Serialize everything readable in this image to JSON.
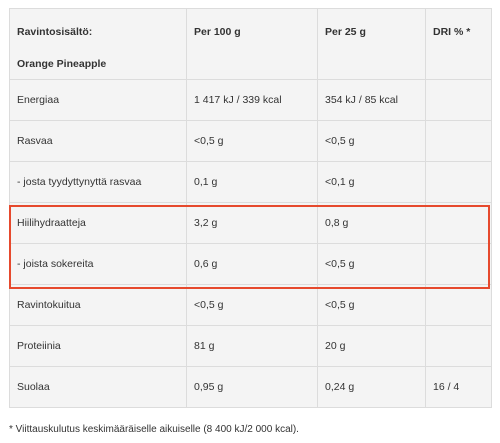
{
  "table": {
    "header": {
      "title": "Ravintosisältö:",
      "product": "Orange Pineapple",
      "per100": "Per 100 g",
      "per25": "Per 25 g",
      "dri": "DRI % *"
    },
    "rows": [
      {
        "name": "Energiaa",
        "per100": "1 417 kJ / 339 kcal",
        "per25": "354 kJ / 85 kcal",
        "dri": ""
      },
      {
        "name": "Rasvaa",
        "per100": "<0,5 g",
        "per25": "<0,5 g",
        "dri": ""
      },
      {
        "name": "- josta tyydyttynyttä rasvaa",
        "per100": "0,1 g",
        "per25": "<0,1 g",
        "dri": ""
      },
      {
        "name": "Hiilihydraatteja",
        "per100": "3,2 g",
        "per25": "0,8 g",
        "dri": ""
      },
      {
        "name": "- joista sokereita",
        "per100": "0,6 g",
        "per25": "<0,5 g",
        "dri": ""
      },
      {
        "name": "Ravintokuitua",
        "per100": "<0,5 g",
        "per25": "<0,5 g",
        "dri": ""
      },
      {
        "name": "Proteiinia",
        "per100": "81 g",
        "per25": "20 g",
        "dri": ""
      },
      {
        "name": "Suolaa",
        "per100": "0,95 g",
        "per25": "0,24 g",
        "dri": "16 / 4"
      }
    ],
    "highlight_color": "#e6492d"
  },
  "footnote": "* Viittauskulutus keskimääräiselle aikuiselle (8 400 kJ/2 000 kcal)."
}
